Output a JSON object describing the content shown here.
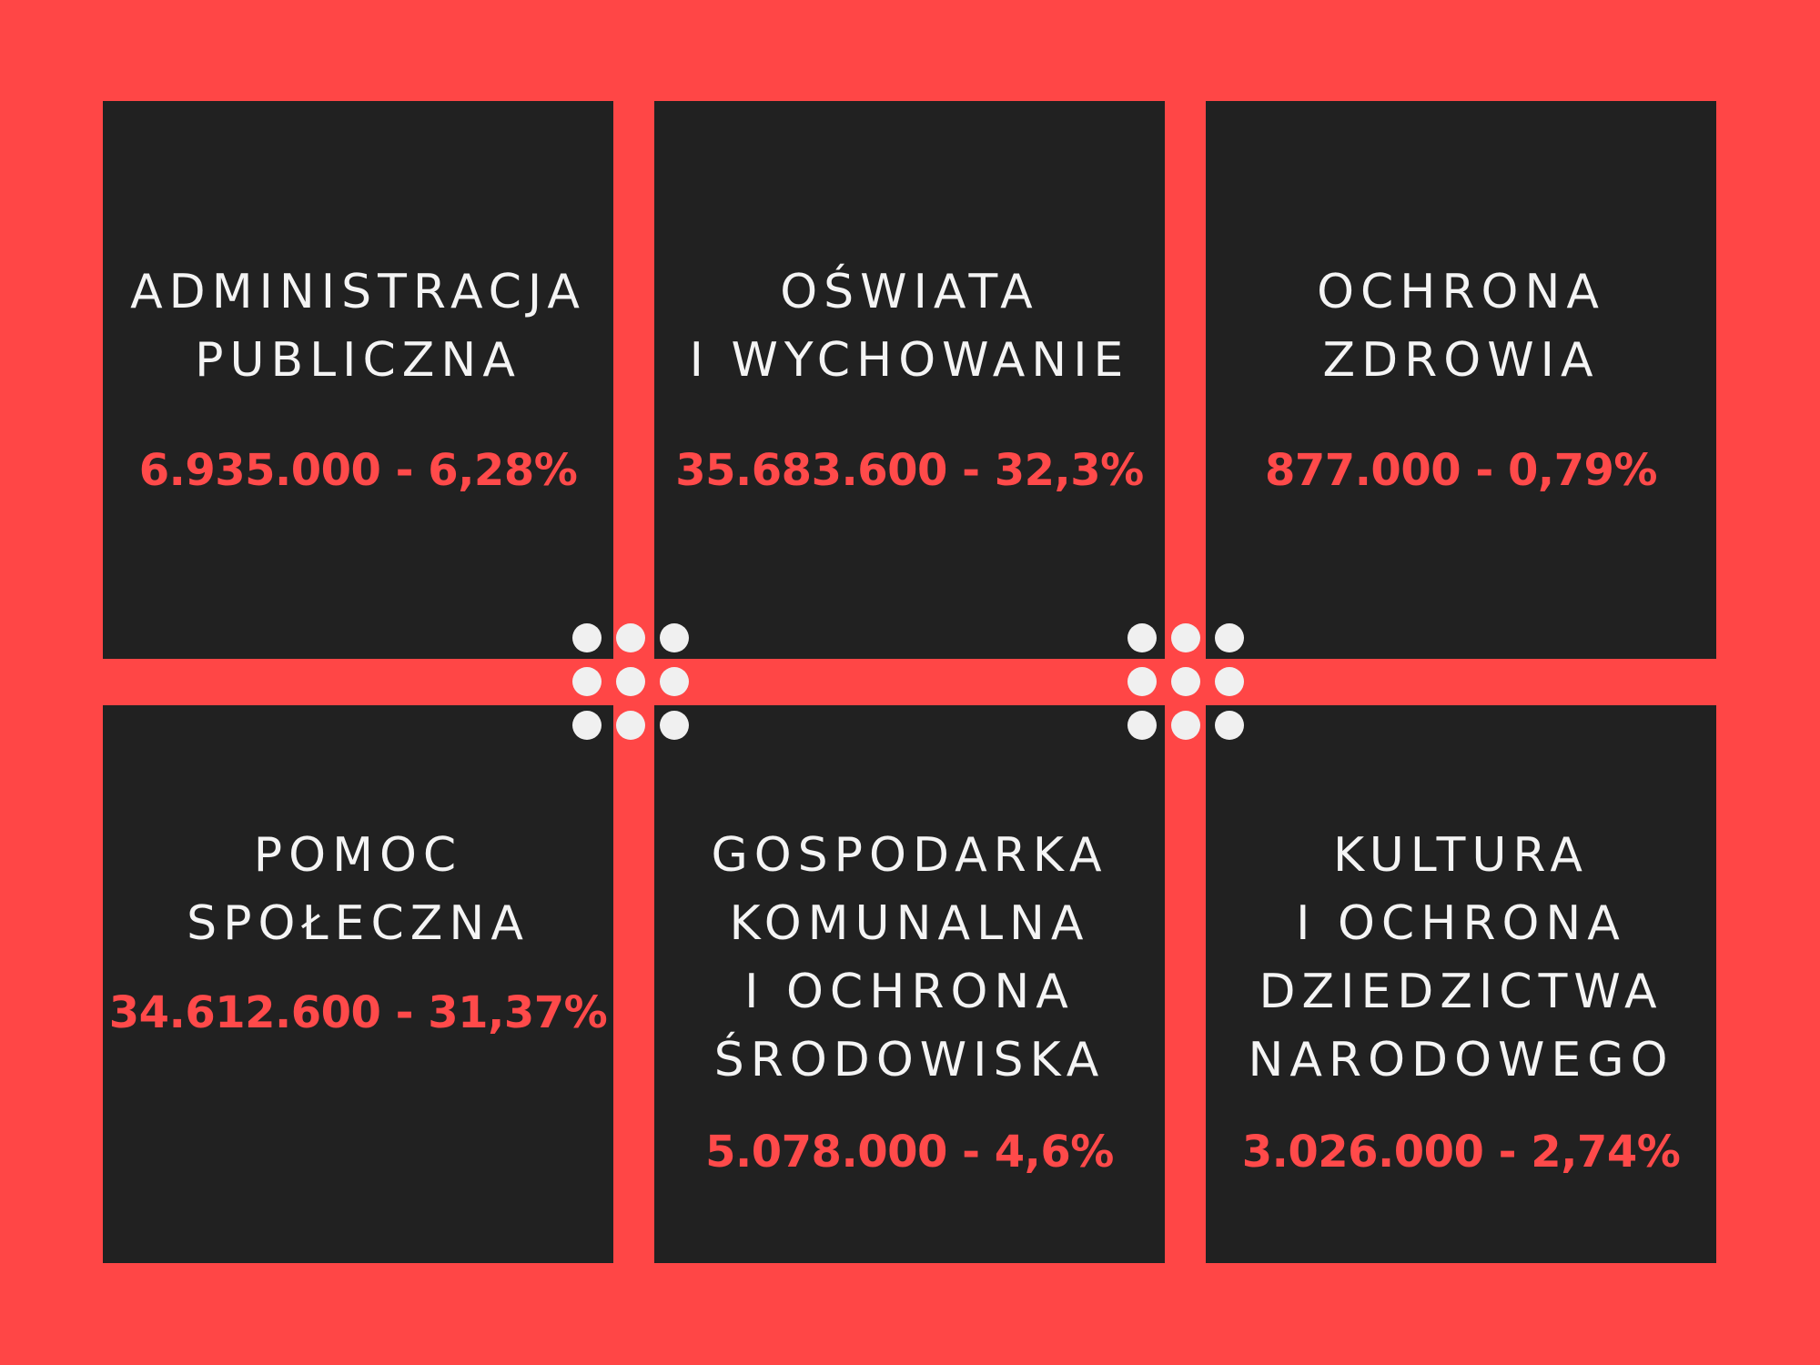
{
  "colors": {
    "background": "#ff4646",
    "card": "#212121",
    "title_text": "#f4f4f4",
    "value_text": "#ff4a4a",
    "dots": "#f0f0f0"
  },
  "cards": [
    {
      "title_lines": [
        "ADMINISTRACJA",
        "PUBLICZNA"
      ],
      "value": "6.935.000 - 6,28%"
    },
    {
      "title_lines": [
        "OŚWIATA",
        "I WYCHOWANIE"
      ],
      "value": "35.683.600 - 32,3%"
    },
    {
      "title_lines": [
        "OCHRONA",
        "ZDROWIA"
      ],
      "value": "877.000 - 0,79%"
    },
    {
      "title_lines": [
        "POMOC",
        "SPOŁECZNA"
      ],
      "value": "34.612.600 - 31,37%"
    },
    {
      "title_lines": [
        "GOSPODARKA",
        "KOMUNALNA",
        "I OCHRONA",
        "ŚRODOWISKA"
      ],
      "value": "5.078.000 - 4,6%"
    },
    {
      "title_lines": [
        "KULTURA",
        "I OCHRONA",
        "DZIEDZICTWA",
        "NARODOWEGO"
      ],
      "value": "3.026.000 - 2,74%"
    }
  ]
}
